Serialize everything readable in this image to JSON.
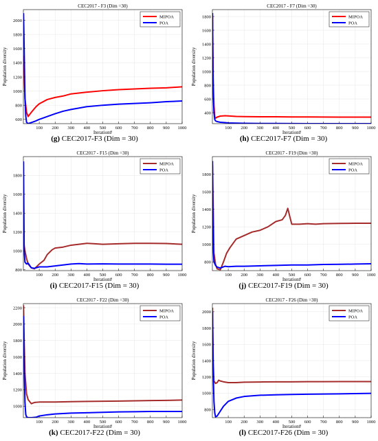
{
  "chart_data": [
    {
      "type": "line",
      "title": "CEC2017 - F3 (Dim =30)",
      "caption_label": "(g)",
      "caption_text": "CEC2017-F3 (Dim = 30)",
      "xlabel": "Iteration#",
      "ylabel": "Population diversity",
      "xlim": [
        0,
        1000
      ],
      "ylim": [
        540,
        2150
      ],
      "xticks": [
        100,
        200,
        300,
        400,
        500,
        600,
        700,
        800,
        900,
        1000
      ],
      "yticks": [
        600,
        800,
        1000,
        1200,
        1400,
        1600,
        1800,
        2000
      ],
      "legend_position": "top-right",
      "series": [
        {
          "name": "MIPOA",
          "color": "#ff0000",
          "x": [
            1,
            10,
            20,
            30,
            50,
            80,
            100,
            150,
            200,
            250,
            300,
            400,
            500,
            600,
            700,
            800,
            900,
            1000
          ],
          "y": [
            1500,
            900,
            700,
            640,
            700,
            780,
            820,
            880,
            910,
            930,
            960,
            985,
            1005,
            1020,
            1030,
            1040,
            1045,
            1060
          ]
        },
        {
          "name": "POA",
          "color": "#0000ff",
          "x": [
            1,
            5,
            10,
            15,
            20,
            30,
            50,
            80,
            100,
            150,
            200,
            250,
            300,
            400,
            500,
            600,
            700,
            800,
            900,
            1000
          ],
          "y": [
            2100,
            1600,
            900,
            650,
            560,
            540,
            555,
            580,
            600,
            640,
            680,
            715,
            740,
            780,
            800,
            815,
            825,
            835,
            850,
            860
          ]
        }
      ]
    },
    {
      "type": "line",
      "title": "CEC2017 - F7 (Dim =30)",
      "caption_label": "(h)",
      "caption_text": "CEC2017-F7 (Dim = 30)",
      "xlabel": "Iteration#",
      "ylabel": "Population diversity",
      "xlim": [
        0,
        1000
      ],
      "ylim": [
        240,
        1900
      ],
      "xticks": [
        100,
        200,
        300,
        400,
        500,
        600,
        700,
        800,
        900,
        1000
      ],
      "yticks": [
        400,
        600,
        800,
        1000,
        1200,
        1400,
        1600,
        1800
      ],
      "legend_position": "top-right",
      "series": [
        {
          "name": "MIPOA",
          "color": "#ff0000",
          "x": [
            1,
            5,
            10,
            15,
            20,
            30,
            50,
            80,
            100,
            150,
            200,
            300,
            400,
            500,
            600,
            700,
            800,
            900,
            1000
          ],
          "y": [
            1800,
            900,
            500,
            340,
            320,
            335,
            350,
            355,
            352,
            345,
            342,
            340,
            340,
            338,
            337,
            336,
            335,
            335,
            335
          ]
        },
        {
          "name": "POA",
          "color": "#0000ff",
          "x": [
            1,
            5,
            10,
            15,
            20,
            30,
            50,
            80,
            100,
            150,
            200,
            300,
            400,
            500,
            600,
            700,
            800,
            900,
            1000
          ],
          "y": [
            1850,
            700,
            400,
            300,
            280,
            270,
            260,
            255,
            250,
            248,
            245,
            243,
            242,
            241,
            240,
            240,
            240,
            240,
            240
          ]
        }
      ]
    },
    {
      "type": "line",
      "title": "CEC2017 - F15 (Dim =30)",
      "caption_label": "(i)",
      "caption_text": "CEC2017-F15 (Dim = 30)",
      "xlabel": "Iteration#",
      "ylabel": "Population diversity",
      "xlim": [
        0,
        1000
      ],
      "ylim": [
        790,
        2000
      ],
      "xticks": [
        100,
        200,
        300,
        400,
        500,
        600,
        700,
        800,
        900,
        1000
      ],
      "yticks": [
        800,
        1000,
        1200,
        1400,
        1600,
        1800
      ],
      "legend_position": "top-right",
      "series": [
        {
          "name": "MIPOA",
          "color": "#a52a2a",
          "x": [
            1,
            10,
            20,
            30,
            50,
            70,
            100,
            130,
            150,
            180,
            200,
            250,
            300,
            350,
            400,
            450,
            500,
            600,
            700,
            800,
            900,
            1000
          ],
          "y": [
            1100,
            1000,
            920,
            860,
            820,
            810,
            860,
            900,
            960,
            1010,
            1030,
            1040,
            1060,
            1070,
            1080,
            1075,
            1070,
            1075,
            1080,
            1080,
            1078,
            1070
          ]
        },
        {
          "name": "POA",
          "color": "#0000ff",
          "x": [
            1,
            5,
            10,
            20,
            30,
            50,
            70,
            100,
            150,
            200,
            250,
            300,
            350,
            400,
            500,
            600,
            700,
            800,
            900,
            1000
          ],
          "y": [
            1950,
            1000,
            880,
            860,
            870,
            820,
            815,
            830,
            830,
            840,
            850,
            860,
            865,
            860,
            862,
            860,
            860,
            860,
            858,
            858
          ]
        }
      ]
    },
    {
      "type": "line",
      "title": "CEC2017 - F19 (Dim =30)",
      "caption_label": "(j)",
      "caption_text": "CEC2017-F19 (Dim = 30)",
      "xlabel": "Iteration#",
      "ylabel": "Population diversity",
      "xlim": [
        0,
        1000
      ],
      "ylim": [
        700,
        2000
      ],
      "xticks": [
        100,
        200,
        300,
        400,
        500,
        600,
        700,
        800,
        900,
        1000
      ],
      "yticks": [
        800,
        1000,
        1200,
        1400,
        1600,
        1800
      ],
      "legend_position": "top-right",
      "series": [
        {
          "name": "MIPOA",
          "color": "#a52a2a",
          "x": [
            1,
            10,
            20,
            30,
            50,
            70,
            90,
            110,
            130,
            150,
            200,
            250,
            300,
            350,
            400,
            440,
            460,
            475,
            490,
            500,
            550,
            600,
            650,
            700,
            800,
            900,
            1000
          ],
          "y": [
            1900,
            900,
            770,
            720,
            710,
            800,
            900,
            960,
            1010,
            1060,
            1100,
            1140,
            1160,
            1200,
            1260,
            1280,
            1330,
            1410,
            1300,
            1230,
            1230,
            1235,
            1230,
            1235,
            1238,
            1240,
            1240
          ]
        },
        {
          "name": "POA",
          "color": "#0000ff",
          "x": [
            1,
            5,
            10,
            20,
            30,
            50,
            80,
            100,
            150,
            200,
            300,
            400,
            500,
            600,
            700,
            800,
            900,
            1000
          ],
          "y": [
            1950,
            950,
            800,
            760,
            740,
            730,
            750,
            745,
            750,
            750,
            755,
            760,
            765,
            765,
            770,
            772,
            775,
            778
          ]
        }
      ]
    },
    {
      "type": "line",
      "title": "CEC2017 - F22 (Dim =30)",
      "caption_label": "(k)",
      "caption_text": "CEC2017-F22 (Dim = 30)",
      "xlabel": "Iteration#",
      "ylabel": "Population diversity",
      "xlim": [
        0,
        1000
      ],
      "ylim": [
        860,
        2250
      ],
      "xticks": [
        100,
        200,
        300,
        400,
        500,
        600,
        700,
        800,
        900,
        1000
      ],
      "yticks": [
        1000,
        1200,
        1400,
        1600,
        1800,
        2000,
        2200
      ],
      "legend_position": "top-right",
      "series": [
        {
          "name": "MIPOA",
          "color": "#a52a2a",
          "x": [
            1,
            5,
            10,
            20,
            30,
            50,
            70,
            100,
            150,
            200,
            300,
            400,
            500,
            600,
            700,
            800,
            900,
            1000
          ],
          "y": [
            2230,
            1800,
            1400,
            1150,
            1080,
            1030,
            1045,
            1050,
            1050,
            1050,
            1055,
            1058,
            1060,
            1062,
            1065,
            1068,
            1070,
            1075
          ]
        },
        {
          "name": "POA",
          "color": "#0000ff",
          "x": [
            1,
            5,
            10,
            15,
            20,
            30,
            50,
            80,
            100,
            150,
            200,
            250,
            300,
            400,
            500,
            600,
            700,
            800,
            900,
            1000
          ],
          "y": [
            2100,
            1500,
            1050,
            900,
            870,
            860,
            860,
            865,
            880,
            895,
            905,
            910,
            915,
            920,
            925,
            930,
            932,
            935,
            935,
            935
          ]
        }
      ]
    },
    {
      "type": "line",
      "title": "CEC2017 - F26 (Dim =30)",
      "caption_label": "(l)",
      "caption_text": "CEC2017-F26 (Dim = 30)",
      "xlabel": "Iteration#",
      "ylabel": "Population diversity",
      "xlim": [
        0,
        1000
      ],
      "ylim": [
        700,
        2100
      ],
      "xticks": [
        100,
        200,
        300,
        400,
        500,
        600,
        700,
        800,
        900,
        1000
      ],
      "yticks": [
        800,
        1000,
        1200,
        1400,
        1600,
        1800,
        2000
      ],
      "legend_position": "top-right",
      "series": [
        {
          "name": "MIPOA",
          "color": "#a52a2a",
          "x": [
            1,
            5,
            10,
            20,
            30,
            40,
            50,
            70,
            100,
            150,
            200,
            300,
            400,
            500,
            600,
            700,
            800,
            900,
            1000
          ],
          "y": [
            2050,
            1400,
            1150,
            1120,
            1130,
            1160,
            1150,
            1140,
            1130,
            1130,
            1135,
            1138,
            1140,
            1140,
            1142,
            1142,
            1143,
            1143,
            1143
          ]
        },
        {
          "name": "POA",
          "color": "#0000ff",
          "x": [
            1,
            5,
            10,
            15,
            20,
            30,
            50,
            70,
            100,
            150,
            200,
            300,
            400,
            500,
            600,
            700,
            800,
            900,
            1000
          ],
          "y": [
            2000,
            1300,
            900,
            760,
            710,
            720,
            780,
            840,
            900,
            940,
            960,
            975,
            980,
            985,
            988,
            990,
            992,
            995,
            998
          ]
        }
      ]
    }
  ]
}
